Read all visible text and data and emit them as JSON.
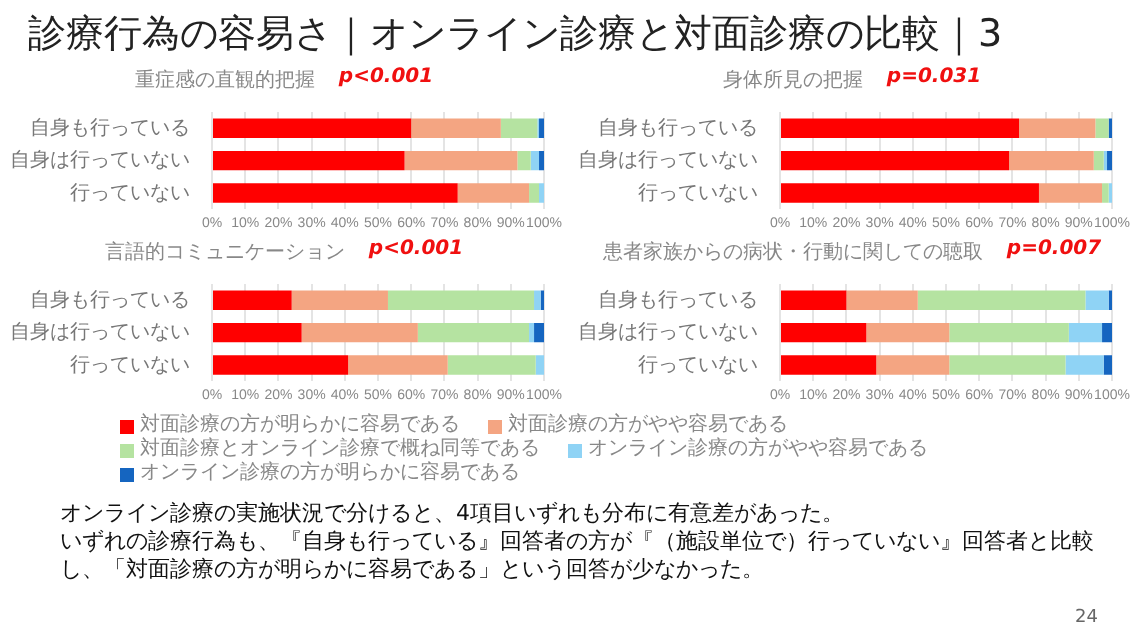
{
  "chart_data": [
    {
      "type": "other",
      "title": "診療行為の容易さ｜オンライン診療と対面診療の比較｜3",
      "annotations": [
        "オンライン診療の実施状況で分けると、4項目いずれも分布に有意差があった。",
        "いずれの診療行為も、『自身も行っている』回答者の方が『（施設単位で）行っていない』回答者と比較し、「対面診療の方が明らかに容易である」という回答が少なかった。",
        "24"
      ]
    },
    {
      "type": "bar",
      "orientation": "horizontal",
      "stacked": true,
      "title": "重症感の直観的把握",
      "annotations": [
        "p<0.001"
      ],
      "categories": [
        "自身も行っている",
        "自身は行っていない",
        "行っていない"
      ],
      "legend": "bottom",
      "grid": "x",
      "xlim": [
        0,
        100
      ],
      "xticks": [
        {
          "value": 0,
          "label": "0%"
        },
        {
          "value": 10,
          "label": "10%"
        },
        {
          "value": 20,
          "label": "20%"
        },
        {
          "value": 30,
          "label": "30%"
        },
        {
          "value": 40,
          "label": "40%"
        },
        {
          "value": 50,
          "label": "50%"
        },
        {
          "value": 60,
          "label": "60%"
        },
        {
          "value": 70,
          "label": "70%"
        },
        {
          "value": 80,
          "label": "80%"
        },
        {
          "value": 90,
          "label": "90%"
        },
        {
          "value": 100,
          "label": "100%"
        }
      ],
      "series": [
        {
          "name": "対面診療の方が明らかに容易である",
          "color": "#ff0000",
          "values": [
            60,
            58,
            74
          ]
        },
        {
          "name": "対面診療の方がやや容易である",
          "color": "#f4a582",
          "values": [
            27,
            34,
            21.5
          ]
        },
        {
          "name": "対面診療とオンライン診療で概ね同等である",
          "color": "#b5e3a1",
          "values": [
            11,
            4,
            3
          ]
        },
        {
          "name": "オンライン診療の方がやや容易である",
          "color": "#8fd3f5",
          "values": [
            0.5,
            2.5,
            1.5
          ]
        },
        {
          "name": "オンライン診療の方が明らかに容易である",
          "color": "#1565c0",
          "values": [
            1.5,
            1.5,
            0
          ]
        }
      ]
    },
    {
      "type": "bar",
      "orientation": "horizontal",
      "stacked": true,
      "title": "身体所見の把握",
      "annotations": [
        "p=0.031"
      ],
      "categories": [
        "自身も行っている",
        "自身は行っていない",
        "行っていない"
      ],
      "grid": "x",
      "xlim": [
        0,
        100
      ],
      "xticks": [
        {
          "value": 0,
          "label": "0%"
        },
        {
          "value": 10,
          "label": "10%"
        },
        {
          "value": 20,
          "label": "20%"
        },
        {
          "value": 30,
          "label": "30%"
        },
        {
          "value": 40,
          "label": "40%"
        },
        {
          "value": 50,
          "label": "50%"
        },
        {
          "value": 60,
          "label": "60%"
        },
        {
          "value": 70,
          "label": "70%"
        },
        {
          "value": 80,
          "label": "80%"
        },
        {
          "value": 90,
          "label": "90%"
        },
        {
          "value": 100,
          "label": "100%"
        }
      ],
      "series": [
        {
          "color": "#ff0000",
          "values": [
            72,
            69,
            78
          ]
        },
        {
          "color": "#f4a582",
          "values": [
            23,
            25.5,
            19
          ]
        },
        {
          "color": "#b5e3a1",
          "values": [
            4,
            3,
            2
          ]
        },
        {
          "color": "#8fd3f5",
          "values": [
            0,
            1,
            1
          ]
        },
        {
          "color": "#1565c0",
          "values": [
            1,
            1.5,
            0
          ]
        }
      ]
    },
    {
      "type": "bar",
      "orientation": "horizontal",
      "stacked": true,
      "title": "言語的コミュニケーション",
      "annotations": [
        "p<0.001"
      ],
      "categories": [
        "自身も行っている",
        "自身は行っていない",
        "行っていない"
      ],
      "grid": "x",
      "xlim": [
        0,
        100
      ],
      "xticks": [
        {
          "value": 0,
          "label": "0%"
        },
        {
          "value": 10,
          "label": "10%"
        },
        {
          "value": 20,
          "label": "20%"
        },
        {
          "value": 30,
          "label": "30%"
        },
        {
          "value": 40,
          "label": "40%"
        },
        {
          "value": 50,
          "label": "50%"
        },
        {
          "value": 60,
          "label": "60%"
        },
        {
          "value": 70,
          "label": "70%"
        },
        {
          "value": 80,
          "label": "80%"
        },
        {
          "value": 90,
          "label": "90%"
        },
        {
          "value": 100,
          "label": "100%"
        }
      ],
      "series": [
        {
          "color": "#ff0000",
          "values": [
            24,
            27,
            41
          ]
        },
        {
          "color": "#f4a582",
          "values": [
            29,
            35,
            30
          ]
        },
        {
          "color": "#b5e3a1",
          "values": [
            44,
            33.5,
            26.5
          ]
        },
        {
          "color": "#8fd3f5",
          "values": [
            2,
            1.5,
            2.5
          ]
        },
        {
          "color": "#1565c0",
          "values": [
            1,
            3,
            0
          ]
        }
      ]
    },
    {
      "type": "bar",
      "orientation": "horizontal",
      "stacked": true,
      "title": "患者家族からの病状・行動に関しての聴取",
      "annotations": [
        "p=0.007"
      ],
      "categories": [
        "自身も行っている",
        "自身は行っていない",
        "行っていない"
      ],
      "grid": "x",
      "xlim": [
        0,
        100
      ],
      "xticks": [
        {
          "value": 0,
          "label": "0%"
        },
        {
          "value": 10,
          "label": "10%"
        },
        {
          "value": 20,
          "label": "20%"
        },
        {
          "value": 30,
          "label": "30%"
        },
        {
          "value": 40,
          "label": "40%"
        },
        {
          "value": 50,
          "label": "50%"
        },
        {
          "value": 60,
          "label": "60%"
        },
        {
          "value": 70,
          "label": "70%"
        },
        {
          "value": 80,
          "label": "80%"
        },
        {
          "value": 90,
          "label": "90%"
        },
        {
          "value": 100,
          "label": "100%"
        }
      ],
      "series": [
        {
          "color": "#ff0000",
          "values": [
            20,
            26,
            29
          ]
        },
        {
          "color": "#f4a582",
          "values": [
            21.5,
            25,
            22
          ]
        },
        {
          "color": "#b5e3a1",
          "values": [
            50.5,
            36,
            35
          ]
        },
        {
          "color": "#8fd3f5",
          "values": [
            7,
            10,
            11.5
          ]
        },
        {
          "color": "#1565c0",
          "values": [
            1,
            3,
            2.5
          ]
        }
      ]
    }
  ]
}
